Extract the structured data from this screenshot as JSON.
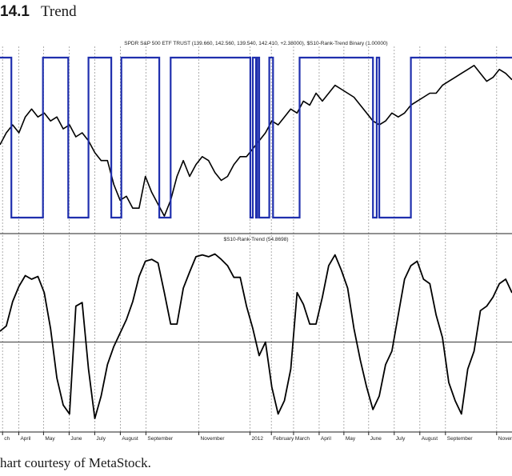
{
  "figure": {
    "number": "14.1",
    "title": "Trend",
    "caption": "hart courtesy of MetaStock."
  },
  "chart_data": [
    {
      "type": "line",
      "title": "SPDR S&P 500 ETF TRUST (139.660, 142.560, 139.540, 142.410, +2.38000), $S10-Rank-Trend Binary (1.00000)",
      "panel": "upper",
      "series": [
        {
          "name": "SPDR S&P 500 ETF TRUST",
          "color": "#000000",
          "values": [
            [
              0,
              126
            ],
            [
              0.5,
              129
            ],
            [
              1,
              131
            ],
            [
              1.5,
              129
            ],
            [
              2,
              133
            ],
            [
              2.5,
              135
            ],
            [
              3,
              133
            ],
            [
              3.5,
              134
            ],
            [
              4,
              132
            ],
            [
              4.5,
              133
            ],
            [
              5,
              130
            ],
            [
              5.5,
              131
            ],
            [
              6,
              128
            ],
            [
              6.5,
              129
            ],
            [
              7,
              127
            ],
            [
              7.5,
              124
            ],
            [
              8,
              122
            ],
            [
              8.5,
              122
            ],
            [
              9,
              116
            ],
            [
              9.5,
              112
            ],
            [
              10,
              113
            ],
            [
              10.5,
              110
            ],
            [
              11,
              110
            ],
            [
              11.5,
              118
            ],
            [
              12,
              114
            ],
            [
              12.5,
              111
            ],
            [
              13,
              108
            ],
            [
              13.5,
              112
            ],
            [
              14,
              118
            ],
            [
              14.5,
              122
            ],
            [
              15,
              118
            ],
            [
              15.5,
              121
            ],
            [
              16,
              123
            ],
            [
              16.5,
              122
            ],
            [
              17,
              119
            ],
            [
              17.5,
              117
            ],
            [
              18,
              118
            ],
            [
              18.5,
              121
            ],
            [
              19,
              123
            ],
            [
              19.5,
              123
            ],
            [
              20,
              125
            ],
            [
              20.5,
              127
            ],
            [
              21,
              129
            ],
            [
              21.5,
              132
            ],
            [
              22,
              131
            ],
            [
              22.5,
              133
            ],
            [
              23,
              135
            ],
            [
              23.5,
              134
            ],
            [
              24,
              137
            ],
            [
              24.5,
              136
            ],
            [
              25,
              139
            ],
            [
              25.5,
              137
            ],
            [
              26,
              139
            ],
            [
              26.5,
              141
            ],
            [
              27,
              140
            ],
            [
              27.5,
              139
            ],
            [
              28,
              138
            ],
            [
              28.5,
              136
            ],
            [
              29,
              134
            ],
            [
              29.5,
              132
            ],
            [
              30,
              131
            ],
            [
              30.5,
              132
            ],
            [
              31,
              134
            ],
            [
              31.5,
              133
            ],
            [
              32,
              134
            ],
            [
              32.5,
              136
            ],
            [
              33,
              137
            ],
            [
              33.5,
              138
            ],
            [
              34,
              139
            ],
            [
              34.5,
              139
            ],
            [
              35,
              141
            ],
            [
              35.5,
              142
            ],
            [
              36,
              143
            ],
            [
              36.5,
              144
            ],
            [
              37,
              145
            ],
            [
              37.5,
              146
            ],
            [
              38,
              144
            ],
            [
              38.5,
              142
            ],
            [
              39,
              143
            ],
            [
              39.5,
              145
            ],
            [
              40,
              144
            ],
            [
              40.5,
              142.4
            ]
          ]
        },
        {
          "name": "$S10-Rank-Trend Binary",
          "color": "#1f2fae",
          "values": [
            [
              0,
              1
            ],
            [
              0.9,
              1
            ],
            [
              0.9,
              0
            ],
            [
              3.4,
              0
            ],
            [
              3.4,
              1
            ],
            [
              5.4,
              1
            ],
            [
              5.4,
              0
            ],
            [
              7.0,
              0
            ],
            [
              7.0,
              1
            ],
            [
              8.8,
              1
            ],
            [
              8.8,
              0
            ],
            [
              9.6,
              0
            ],
            [
              9.6,
              1
            ],
            [
              12.6,
              1
            ],
            [
              12.6,
              0
            ],
            [
              13.5,
              0
            ],
            [
              13.5,
              1
            ],
            [
              19.8,
              1
            ],
            [
              19.8,
              0
            ],
            [
              20.0,
              0
            ],
            [
              20.0,
              1
            ],
            [
              20.25,
              1
            ],
            [
              20.25,
              0
            ],
            [
              20.35,
              0
            ],
            [
              20.35,
              1
            ],
            [
              20.5,
              1
            ],
            [
              20.5,
              0
            ],
            [
              21.3,
              0
            ],
            [
              21.3,
              1
            ],
            [
              21.6,
              1
            ],
            [
              21.6,
              0
            ],
            [
              23.7,
              0
            ],
            [
              23.7,
              1
            ],
            [
              29.5,
              1
            ],
            [
              29.5,
              0
            ],
            [
              29.8,
              0
            ],
            [
              29.8,
              1
            ],
            [
              30.0,
              1
            ],
            [
              30.0,
              0
            ],
            [
              32.5,
              0
            ],
            [
              32.5,
              1
            ],
            [
              40.5,
              1
            ]
          ]
        }
      ],
      "ylim": [
        106,
        150
      ],
      "binary_ylim": [
        0,
        1
      ],
      "grid": "vertical dashed"
    },
    {
      "type": "line",
      "title": "$S10-Rank-Trend (54.8698)",
      "panel": "lower",
      "series": [
        {
          "name": "$S10-Rank-Trend",
          "color": "#000000",
          "values": [
            [
              0,
              12
            ],
            [
              0.5,
              18
            ],
            [
              1,
              45
            ],
            [
              1.5,
              62
            ],
            [
              2,
              74
            ],
            [
              2.5,
              70
            ],
            [
              3,
              73
            ],
            [
              3.5,
              55
            ],
            [
              4,
              15
            ],
            [
              4.5,
              -40
            ],
            [
              5,
              -70
            ],
            [
              5.5,
              -80
            ],
            [
              6,
              40
            ],
            [
              6.5,
              44
            ],
            [
              7,
              -30
            ],
            [
              7.5,
              -85
            ],
            [
              8,
              -60
            ],
            [
              8.5,
              -25
            ],
            [
              9,
              -5
            ],
            [
              9.5,
              10
            ],
            [
              10,
              25
            ],
            [
              10.5,
              45
            ],
            [
              11,
              73
            ],
            [
              11.5,
              90
            ],
            [
              12,
              92
            ],
            [
              12.5,
              88
            ],
            [
              13,
              55
            ],
            [
              13.5,
              20
            ],
            [
              14,
              20
            ],
            [
              14.5,
              60
            ],
            [
              15,
              78
            ],
            [
              15.5,
              95
            ],
            [
              16,
              97
            ],
            [
              16.5,
              95
            ],
            [
              17,
              98
            ],
            [
              17.5,
              92
            ],
            [
              18,
              85
            ],
            [
              18.5,
              72
            ],
            [
              19,
              72
            ],
            [
              19.5,
              40
            ],
            [
              20,
              15
            ],
            [
              20.5,
              -15
            ],
            [
              21,
              0
            ],
            [
              21.5,
              -50
            ],
            [
              22,
              -80
            ],
            [
              22.5,
              -65
            ],
            [
              23,
              -30
            ],
            [
              23.5,
              55
            ],
            [
              24,
              42
            ],
            [
              24.5,
              20
            ],
            [
              25,
              20
            ],
            [
              25.5,
              50
            ],
            [
              26,
              85
            ],
            [
              26.5,
              97
            ],
            [
              27,
              80
            ],
            [
              27.5,
              60
            ],
            [
              28,
              15
            ],
            [
              28.5,
              -20
            ],
            [
              29,
              -50
            ],
            [
              29.5,
              -75
            ],
            [
              30,
              -60
            ],
            [
              30.5,
              -25
            ],
            [
              31,
              -10
            ],
            [
              31.5,
              30
            ],
            [
              32,
              70
            ],
            [
              32.5,
              85
            ],
            [
              33,
              90
            ],
            [
              33.5,
              70
            ],
            [
              34,
              65
            ],
            [
              34.5,
              30
            ],
            [
              35,
              5
            ],
            [
              35.5,
              -45
            ],
            [
              36,
              -65
            ],
            [
              36.5,
              -80
            ],
            [
              37,
              -30
            ],
            [
              37.5,
              -10
            ],
            [
              38,
              35
            ],
            [
              38.5,
              40
            ],
            [
              39,
              50
            ],
            [
              39.5,
              65
            ],
            [
              40,
              70
            ],
            [
              40.5,
              54.87
            ]
          ]
        }
      ],
      "reference_line": 0,
      "ylim": [
        -100,
        110
      ],
      "grid": "vertical dashed"
    }
  ],
  "x_axis": {
    "tick_labels": [
      "ch",
      "April",
      "May",
      "June",
      "July",
      "August",
      "September",
      "November",
      "2012",
      "February",
      "March",
      "April",
      "May",
      "June",
      "July",
      "August",
      "September",
      "November"
    ],
    "tick_positions": [
      0,
      2,
      5,
      8,
      11,
      14,
      17,
      23,
      29,
      31.5,
      34,
      37,
      40,
      43,
      46,
      49,
      52,
      58
    ]
  },
  "month_label_positions": [
    0.3,
    2.2,
    5.1,
    8.1,
    11.1,
    14.1,
    17.1,
    23.3,
    29.3,
    31.8,
    34.4,
    37.4,
    40.3,
    43.2,
    46.2,
    49.2,
    52.2,
    58.2
  ],
  "colors": {
    "price": "#000000",
    "binary": "#1f2fae",
    "grid": "#9a9a9a",
    "frame": "#222222"
  }
}
